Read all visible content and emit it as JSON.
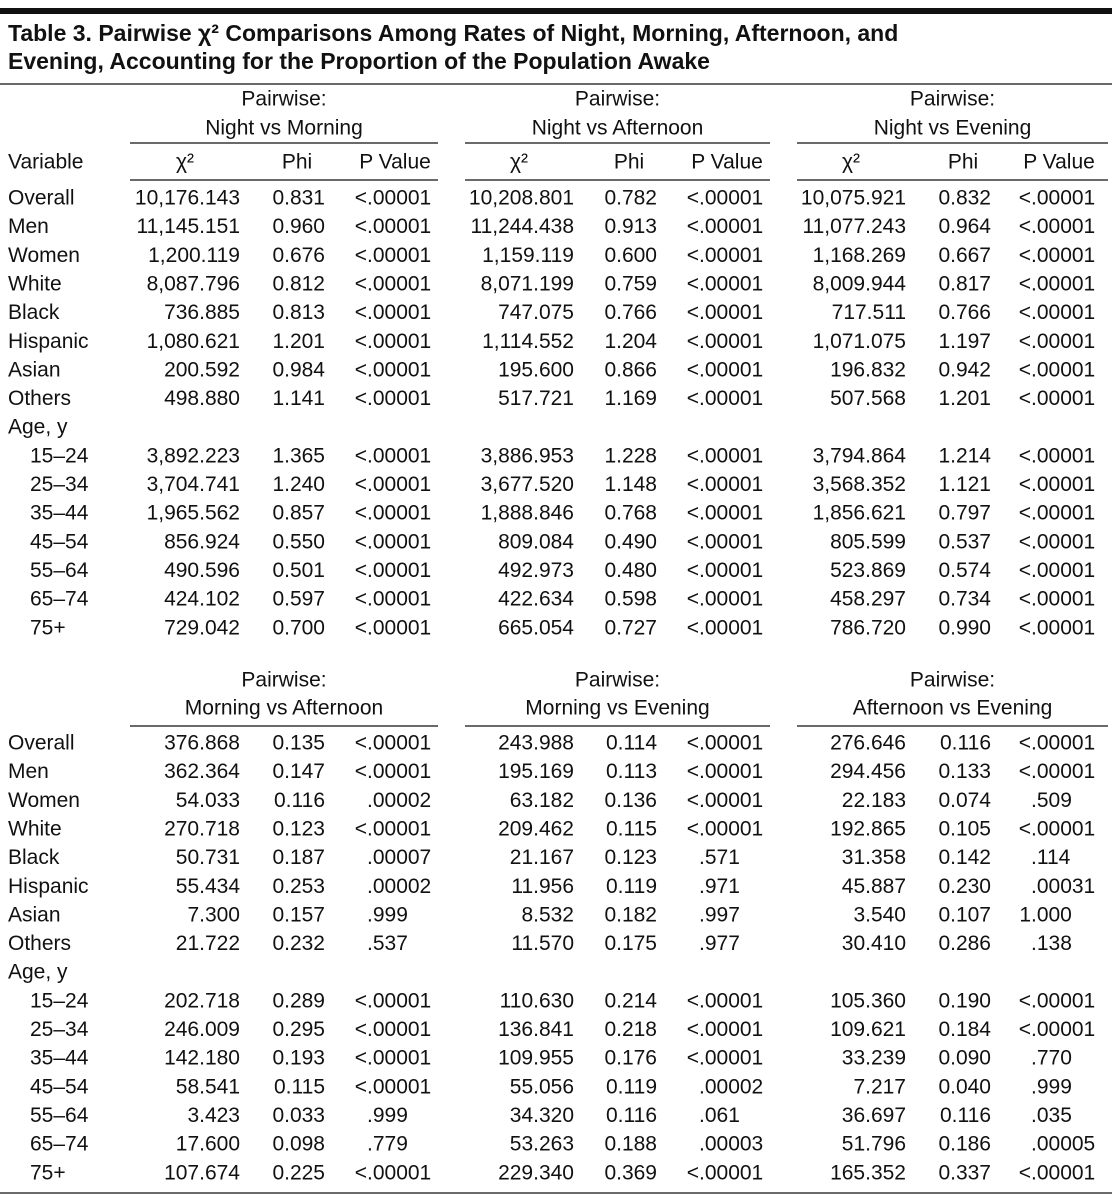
{
  "title": [
    "Table 3. Pairwise χ² Comparisons Among Rates of Night, Morning, Afternoon, and",
    "Evening, Accounting for the Proportion of the Population Awake"
  ],
  "panels": [
    {
      "row_header": "Variable",
      "groups": [
        {
          "heading": [
            "Pairwise:",
            "Night vs Morning"
          ],
          "columns": [
            "χ²",
            "Phi",
            "P Value"
          ]
        },
        {
          "heading": [
            "Pairwise:",
            "Night vs Afternoon"
          ],
          "columns": [
            "χ²",
            "Phi",
            "P Value"
          ]
        },
        {
          "heading": [
            "Pairwise:",
            "Night vs Evening"
          ],
          "columns": [
            "χ²",
            "Phi",
            "P Value"
          ]
        }
      ],
      "rows": [
        {
          "label": "Overall",
          "cells": [
            [
              "10,176.143",
              "0.831",
              "<.00001"
            ],
            [
              "10,208.801",
              "0.782",
              "<.00001"
            ],
            [
              "10,075.921",
              "0.832",
              "<.00001"
            ]
          ]
        },
        {
          "label": "Men",
          "cells": [
            [
              "11,145.151",
              "0.960",
              "<.00001"
            ],
            [
              "11,244.438",
              "0.913",
              "<.00001"
            ],
            [
              "11,077.243",
              "0.964",
              "<.00001"
            ]
          ]
        },
        {
          "label": "Women",
          "cells": [
            [
              "1,200.119",
              "0.676",
              "<.00001"
            ],
            [
              "1,159.119",
              "0.600",
              "<.00001"
            ],
            [
              "1,168.269",
              "0.667",
              "<.00001"
            ]
          ]
        },
        {
          "label": "White",
          "cells": [
            [
              "8,087.796",
              "0.812",
              "<.00001"
            ],
            [
              "8,071.199",
              "0.759",
              "<.00001"
            ],
            [
              "8,009.944",
              "0.817",
              "<.00001"
            ]
          ]
        },
        {
          "label": "Black",
          "cells": [
            [
              "736.885",
              "0.813",
              "<.00001"
            ],
            [
              "747.075",
              "0.766",
              "<.00001"
            ],
            [
              "717.511",
              "0.766",
              "<.00001"
            ]
          ]
        },
        {
          "label": "Hispanic",
          "cells": [
            [
              "1,080.621",
              "1.201",
              "<.00001"
            ],
            [
              "1,114.552",
              "1.204",
              "<.00001"
            ],
            [
              "1,071.075",
              "1.197",
              "<.00001"
            ]
          ]
        },
        {
          "label": "Asian",
          "cells": [
            [
              "200.592",
              "0.984",
              "<.00001"
            ],
            [
              "195.600",
              "0.866",
              "<.00001"
            ],
            [
              "196.832",
              "0.942",
              "<.00001"
            ]
          ]
        },
        {
          "label": "Others",
          "cells": [
            [
              "498.880",
              "1.141",
              "<.00001"
            ],
            [
              "517.721",
              "1.169",
              "<.00001"
            ],
            [
              "507.568",
              "1.201",
              "<.00001"
            ]
          ]
        },
        {
          "label": "Age, y"
        },
        {
          "label": "15–24",
          "cells": [
            [
              "3,892.223",
              "1.365",
              "<.00001"
            ],
            [
              "3,886.953",
              "1.228",
              "<.00001"
            ],
            [
              "3,794.864",
              "1.214",
              "<.00001"
            ]
          ]
        },
        {
          "label": "25–34",
          "cells": [
            [
              "3,704.741",
              "1.240",
              "<.00001"
            ],
            [
              "3,677.520",
              "1.148",
              "<.00001"
            ],
            [
              "3,568.352",
              "1.121",
              "<.00001"
            ]
          ]
        },
        {
          "label": "35–44",
          "cells": [
            [
              "1,965.562",
              "0.857",
              "<.00001"
            ],
            [
              "1,888.846",
              "0.768",
              "<.00001"
            ],
            [
              "1,856.621",
              "0.797",
              "<.00001"
            ]
          ]
        },
        {
          "label": "45–54",
          "cells": [
            [
              "856.924",
              "0.550",
              "<.00001"
            ],
            [
              "809.084",
              "0.490",
              "<.00001"
            ],
            [
              "805.599",
              "0.537",
              "<.00001"
            ]
          ]
        },
        {
          "label": "55–64",
          "cells": [
            [
              "490.596",
              "0.501",
              "<.00001"
            ],
            [
              "492.973",
              "0.480",
              "<.00001"
            ],
            [
              "523.869",
              "0.574",
              "<.00001"
            ]
          ]
        },
        {
          "label": "65–74",
          "cells": [
            [
              "424.102",
              "0.597",
              "<.00001"
            ],
            [
              "422.634",
              "0.598",
              "<.00001"
            ],
            [
              "458.297",
              "0.734",
              "<.00001"
            ]
          ]
        },
        {
          "label": "75+",
          "cells": [
            [
              "729.042",
              "0.700",
              "<.00001"
            ],
            [
              "665.054",
              "0.727",
              "<.00001"
            ],
            [
              "786.720",
              "0.990",
              "<.00001"
            ]
          ]
        }
      ]
    },
    {
      "groups": [
        {
          "heading": [
            "Pairwise:",
            "Morning vs Afternoon"
          ]
        },
        {
          "heading": [
            "Pairwise:",
            "Morning vs Evening"
          ]
        },
        {
          "heading": [
            "Pairwise:",
            "Afternoon vs Evening"
          ]
        }
      ],
      "rows": [
        {
          "label": "Overall",
          "cells": [
            [
              "376.868",
              "0.135",
              "<.00001"
            ],
            [
              "243.988",
              "0.114",
              "<.00001"
            ],
            [
              "276.646",
              "0.116",
              "<.00001"
            ]
          ]
        },
        {
          "label": "Men",
          "cells": [
            [
              "362.364",
              "0.147",
              "<.00001"
            ],
            [
              "195.169",
              "0.113",
              "<.00001"
            ],
            [
              "294.456",
              "0.133",
              "<.00001"
            ]
          ]
        },
        {
          "label": "Women",
          "cells": [
            [
              "54.033",
              "0.116",
              ".00002"
            ],
            [
              "63.182",
              "0.136",
              "<.00001"
            ],
            [
              "22.183",
              "0.074",
              ".509"
            ]
          ]
        },
        {
          "label": "White",
          "cells": [
            [
              "270.718",
              "0.123",
              "<.00001"
            ],
            [
              "209.462",
              "0.115",
              "<.00001"
            ],
            [
              "192.865",
              "0.105",
              "<.00001"
            ]
          ]
        },
        {
          "label": "Black",
          "cells": [
            [
              "50.731",
              "0.187",
              ".00007"
            ],
            [
              "21.167",
              "0.123",
              ".571"
            ],
            [
              "31.358",
              "0.142",
              ".114"
            ]
          ]
        },
        {
          "label": "Hispanic",
          "cells": [
            [
              "55.434",
              "0.253",
              ".00002"
            ],
            [
              "11.956",
              "0.119",
              ".971"
            ],
            [
              "45.887",
              "0.230",
              ".00031"
            ]
          ]
        },
        {
          "label": "Asian",
          "cells": [
            [
              "7.300",
              "0.157",
              ".999"
            ],
            [
              "8.532",
              "0.182",
              ".997"
            ],
            [
              "3.540",
              "0.107",
              "1.000"
            ]
          ]
        },
        {
          "label": "Others",
          "cells": [
            [
              "21.722",
              "0.232",
              ".537"
            ],
            [
              "11.570",
              "0.175",
              ".977"
            ],
            [
              "30.410",
              "0.286",
              ".138"
            ]
          ]
        },
        {
          "label": "Age, y"
        },
        {
          "label": "15–24",
          "cells": [
            [
              "202.718",
              "0.289",
              "<.00001"
            ],
            [
              "110.630",
              "0.214",
              "<.00001"
            ],
            [
              "105.360",
              "0.190",
              "<.00001"
            ]
          ]
        },
        {
          "label": "25–34",
          "cells": [
            [
              "246.009",
              "0.295",
              "<.00001"
            ],
            [
              "136.841",
              "0.218",
              "<.00001"
            ],
            [
              "109.621",
              "0.184",
              "<.00001"
            ]
          ]
        },
        {
          "label": "35–44",
          "cells": [
            [
              "142.180",
              "0.193",
              "<.00001"
            ],
            [
              "109.955",
              "0.176",
              "<.00001"
            ],
            [
              "33.239",
              "0.090",
              ".770"
            ]
          ]
        },
        {
          "label": "45–54",
          "cells": [
            [
              "58.541",
              "0.115",
              "<.00001"
            ],
            [
              "55.056",
              "0.119",
              ".00002"
            ],
            [
              "7.217",
              "0.040",
              ".999"
            ]
          ]
        },
        {
          "label": "55–64",
          "cells": [
            [
              "3.423",
              "0.033",
              ".999"
            ],
            [
              "34.320",
              "0.116",
              ".061"
            ],
            [
              "36.697",
              "0.116",
              ".035"
            ]
          ]
        },
        {
          "label": "65–74",
          "cells": [
            [
              "17.600",
              "0.098",
              ".779"
            ],
            [
              "53.263",
              "0.188",
              ".00003"
            ],
            [
              "51.796",
              "0.186",
              ".00005"
            ]
          ]
        },
        {
          "label": "75+",
          "cells": [
            [
              "107.674",
              "0.225",
              "<.00001"
            ],
            [
              "229.340",
              "0.369",
              "<.00001"
            ],
            [
              "165.352",
              "0.337",
              "<.00001"
            ]
          ]
        }
      ]
    }
  ]
}
